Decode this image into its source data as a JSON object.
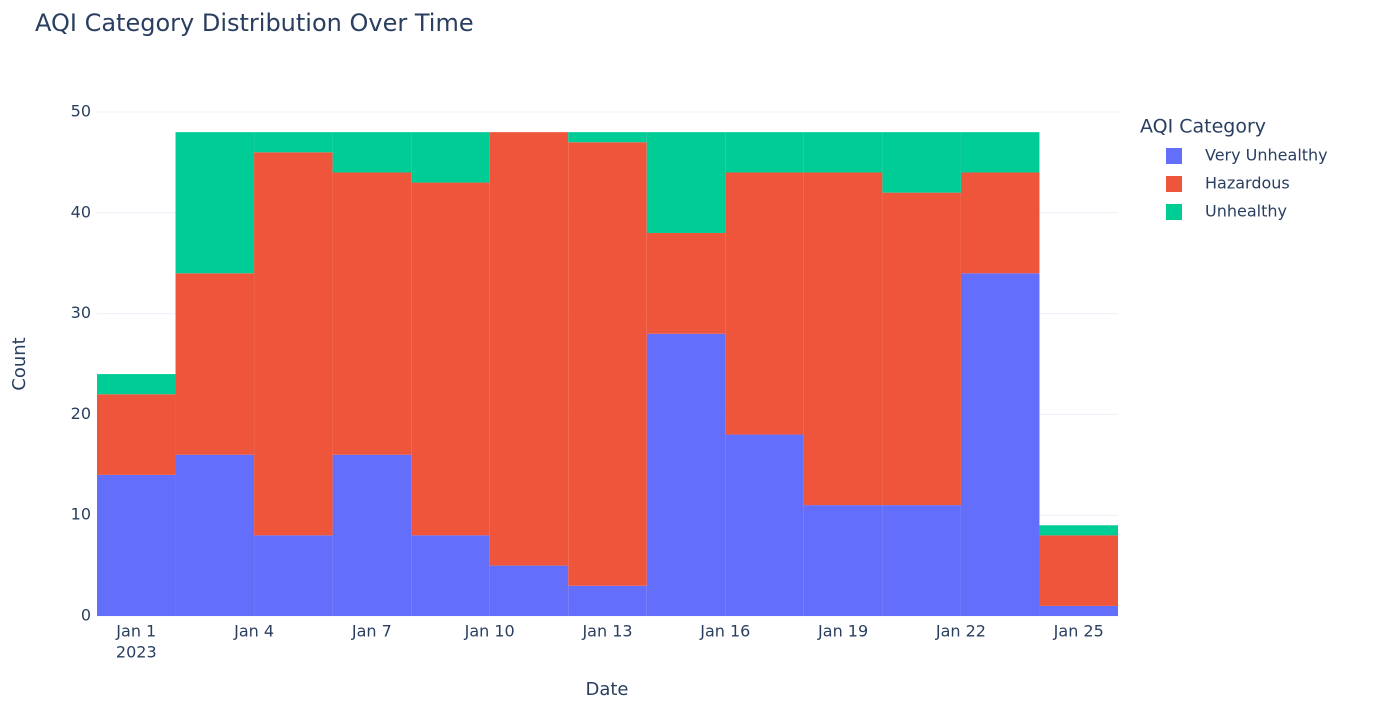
{
  "chart_data": {
    "type": "histogram",
    "title": "AQI Category Distribution Over Time",
    "x_label": "Date",
    "y_label": "Count",
    "legend_title": "AQI Category",
    "bins": [
      0,
      2,
      4,
      6,
      8,
      10,
      12,
      14,
      16,
      18,
      20,
      22,
      24,
      26
    ],
    "series": [
      {
        "name": "Very Unhealthy",
        "color": "#636efa",
        "values": [
          14,
          16,
          8,
          16,
          8,
          5,
          3,
          28,
          18,
          11,
          11,
          34,
          1
        ]
      },
      {
        "name": "Hazardous",
        "color": "#ef553b",
        "values": [
          8,
          18,
          38,
          28,
          35,
          43,
          44,
          10,
          26,
          33,
          31,
          10,
          7
        ]
      },
      {
        "name": "Unhealthy",
        "color": "#00cc96",
        "values": [
          2,
          14,
          2,
          4,
          5,
          0,
          1,
          10,
          4,
          4,
          6,
          4,
          1
        ]
      }
    ],
    "xlim": [
      0,
      26
    ],
    "xticks": [
      {
        "value": 1,
        "label": "Jan 1"
      },
      {
        "value": 4,
        "label": "Jan 4"
      },
      {
        "value": 7,
        "label": "Jan 7"
      },
      {
        "value": 10,
        "label": "Jan 10"
      },
      {
        "value": 13,
        "label": "Jan 13"
      },
      {
        "value": 16,
        "label": "Jan 16"
      },
      {
        "value": 19,
        "label": "Jan 19"
      },
      {
        "value": 22,
        "label": "Jan 22"
      },
      {
        "value": 25,
        "label": "Jan 25"
      }
    ],
    "xtick_year": "2023",
    "ylim": [
      0,
      50
    ],
    "yticks": [
      0,
      10,
      20,
      30,
      40,
      50
    ],
    "grid": true,
    "legend": "right"
  }
}
